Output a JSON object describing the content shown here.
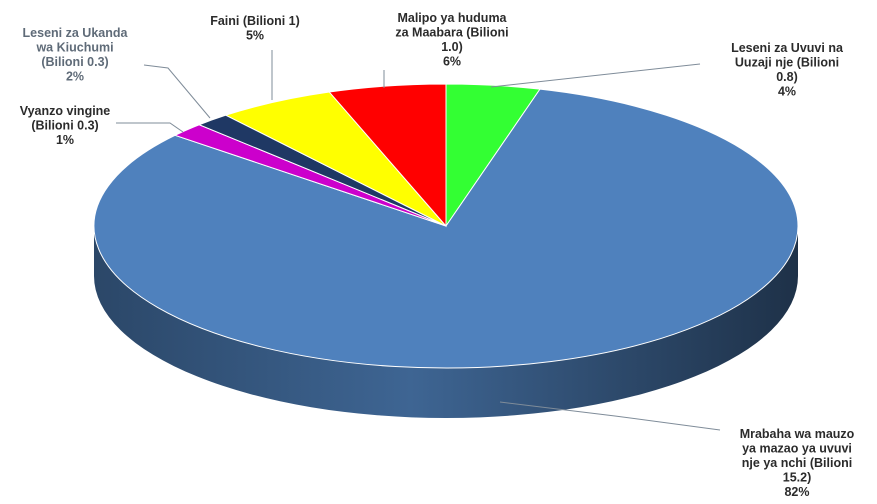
{
  "chart_data": {
    "type": "pie",
    "title": "",
    "slices": [
      {
        "label": [
          "Leseni za Uvuvi na",
          "Uuzaji nje (Bilioni",
          "0.8)",
          "4%"
        ],
        "value": 0.8,
        "percent": 4,
        "color": "#33ff33"
      },
      {
        "label": [
          "Mrabaha wa mauzo",
          "ya mazao ya uvuvi",
          "nje ya nchi (Bilioni",
          "15.2)",
          "82%"
        ],
        "value": 15.2,
        "percent": 82,
        "color": "#4f81bd"
      },
      {
        "label": [
          "Vyanzo vingine",
          "(Bilioni 0.3)",
          "1%"
        ],
        "value": 0.3,
        "percent": 1,
        "color": "#cc00cc"
      },
      {
        "label": [
          "Leseni za Ukanda",
          "wa Kiuchumi",
          "(Bilioni 0.3)",
          "2%"
        ],
        "value": 0.3,
        "percent": 2,
        "color": "#1f3864"
      },
      {
        "label": [
          "Faini (Bilioni 1)",
          "5%"
        ],
        "value": 1.0,
        "percent": 5,
        "color": "#ffff00"
      },
      {
        "label": [
          "Malipo ya huduma",
          "za Maabara (Bilioni",
          "1.0)",
          "6%"
        ],
        "value": 1.0,
        "percent": 6,
        "color": "#ff0000"
      }
    ],
    "legend": "none",
    "style": "3d-pie"
  }
}
